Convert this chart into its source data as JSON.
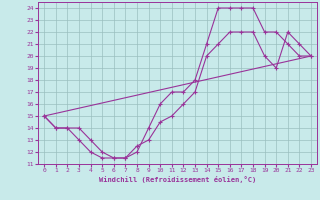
{
  "xlabel": "Windchill (Refroidissement éolien,°C)",
  "bg_color": "#c8eaea",
  "grid_color": "#9bbfbf",
  "line_color": "#993399",
  "xlim": [
    -0.5,
    23.5
  ],
  "ylim": [
    11,
    24.5
  ],
  "xticks": [
    0,
    1,
    2,
    3,
    4,
    5,
    6,
    7,
    8,
    9,
    10,
    11,
    12,
    13,
    14,
    15,
    16,
    17,
    18,
    19,
    20,
    21,
    22,
    23
  ],
  "yticks": [
    11,
    12,
    13,
    14,
    15,
    16,
    17,
    18,
    19,
    20,
    21,
    22,
    23,
    24
  ],
  "curve1_x": [
    0,
    1,
    2,
    3,
    4,
    5,
    6,
    7,
    8,
    9,
    10,
    11,
    12,
    13,
    14,
    15,
    16,
    17,
    18,
    19,
    20,
    21,
    22,
    23
  ],
  "curve1_y": [
    15,
    14,
    14,
    14,
    13,
    12,
    11.5,
    11.5,
    12,
    14,
    16,
    17,
    17,
    18,
    21,
    24,
    24,
    24,
    24,
    22,
    22,
    21,
    20,
    20
  ],
  "curve2_x": [
    0,
    1,
    2,
    3,
    4,
    5,
    6,
    7,
    8,
    9,
    10,
    11,
    12,
    13,
    14,
    15,
    16,
    17,
    18,
    19,
    20,
    21,
    22,
    23
  ],
  "curve2_y": [
    15,
    14,
    14,
    13,
    12,
    11.5,
    11.5,
    11.5,
    12.5,
    13,
    14.5,
    15,
    16,
    17,
    20,
    21,
    22,
    22,
    22,
    20,
    19,
    22,
    21,
    20
  ],
  "curve3_x": [
    0,
    23
  ],
  "curve3_y": [
    15,
    20
  ]
}
